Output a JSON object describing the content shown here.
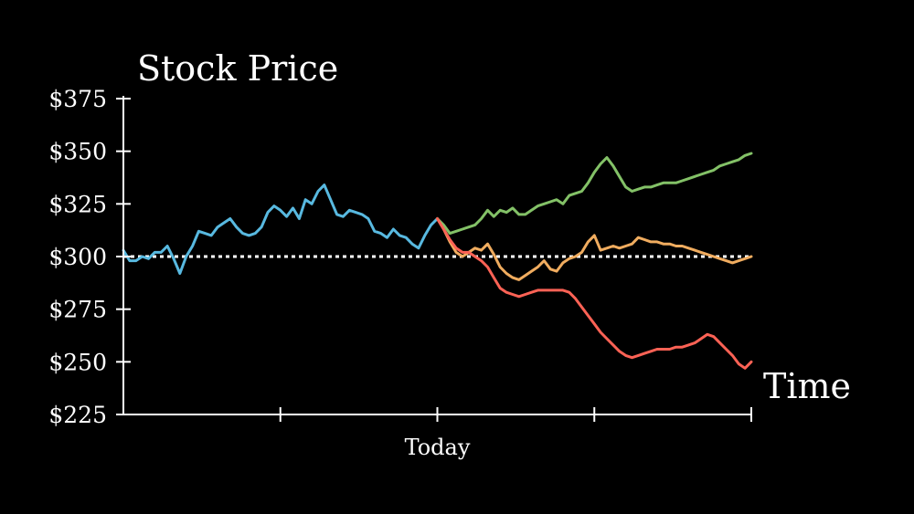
{
  "chart_data": {
    "type": "line",
    "ylabel": "Stock Price",
    "xlabel": "Time",
    "ylim": [
      225,
      375
    ],
    "yticks": [
      375,
      350,
      325,
      300,
      275,
      250,
      225
    ],
    "ytick_labels": [
      "$375",
      "$350",
      "$325",
      "$300",
      "$275",
      "$250",
      "$225"
    ],
    "xlim": [
      -1,
      1
    ],
    "xticks": [
      -1,
      -0.5,
      0,
      0.5,
      1
    ],
    "xtick_labels": [
      "",
      "",
      "Today",
      "",
      ""
    ],
    "reference_line": {
      "y": 300,
      "style": "dotted",
      "color": "#ffffff"
    },
    "series": [
      {
        "color": "#58b9e0",
        "x": [
          -1,
          -0.98,
          -0.96,
          -0.94,
          -0.92,
          -0.9,
          -0.88,
          -0.86,
          -0.84,
          -0.82,
          -0.8,
          -0.78,
          -0.76,
          -0.74,
          -0.72,
          -0.7,
          -0.68,
          -0.66,
          -0.64,
          -0.62,
          -0.6,
          -0.58,
          -0.56,
          -0.54,
          -0.52,
          -0.5,
          -0.48,
          -0.46,
          -0.44,
          -0.42,
          -0.4,
          -0.38,
          -0.36,
          -0.34,
          -0.32,
          -0.3,
          -0.28,
          -0.26,
          -0.24,
          -0.22,
          -0.2,
          -0.18,
          -0.16,
          -0.14,
          -0.12,
          -0.1,
          -0.08,
          -0.06,
          -0.04,
          -0.02,
          0
        ],
        "y": [
          303,
          298,
          298,
          300,
          299,
          302,
          302,
          305,
          299,
          292,
          300,
          305,
          312,
          311,
          310,
          314,
          316,
          318,
          314,
          311,
          310,
          311,
          314,
          321,
          324,
          322,
          319,
          323,
          318,
          327,
          325,
          331,
          334,
          327,
          320,
          319,
          322,
          321,
          320,
          318,
          312,
          311,
          309,
          313,
          310,
          309,
          306,
          304,
          310,
          315,
          318
        ]
      },
      {
        "color": "#83c167",
        "x": [
          0,
          0.02,
          0.04,
          0.06,
          0.08,
          0.1,
          0.12,
          0.14,
          0.16,
          0.18,
          0.2,
          0.22,
          0.24,
          0.26,
          0.28,
          0.3,
          0.32,
          0.34,
          0.36,
          0.38,
          0.4,
          0.42,
          0.44,
          0.46,
          0.48,
          0.5,
          0.52,
          0.54,
          0.56,
          0.58,
          0.6,
          0.62,
          0.64,
          0.66,
          0.68,
          0.7,
          0.72,
          0.74,
          0.76,
          0.78,
          0.8,
          0.82,
          0.84,
          0.86,
          0.88,
          0.9,
          0.92,
          0.94,
          0.96,
          0.98,
          1
        ],
        "y": [
          318,
          315,
          311,
          312,
          313,
          314,
          315,
          318,
          322,
          319,
          322,
          321,
          323,
          320,
          320,
          322,
          324,
          325,
          326,
          327,
          325,
          329,
          330,
          331,
          335,
          340,
          344,
          347,
          343,
          338,
          333,
          331,
          332,
          333,
          333,
          334,
          335,
          335,
          335,
          336,
          337,
          338,
          339,
          340,
          341,
          343,
          344,
          345,
          346,
          348,
          349
        ]
      },
      {
        "color": "#f0ac5f",
        "x": [
          0,
          0.02,
          0.04,
          0.06,
          0.08,
          0.1,
          0.12,
          0.14,
          0.16,
          0.18,
          0.2,
          0.22,
          0.24,
          0.26,
          0.28,
          0.3,
          0.32,
          0.34,
          0.36,
          0.38,
          0.4,
          0.42,
          0.44,
          0.46,
          0.48,
          0.5,
          0.52,
          0.54,
          0.56,
          0.58,
          0.6,
          0.62,
          0.64,
          0.66,
          0.68,
          0.7,
          0.72,
          0.74,
          0.76,
          0.78,
          0.8,
          0.82,
          0.84,
          0.86,
          0.88,
          0.9,
          0.92,
          0.94,
          0.96,
          0.98,
          1
        ],
        "y": [
          318,
          313,
          307,
          302,
          300,
          302,
          304,
          303,
          306,
          301,
          295,
          292,
          290,
          289,
          291,
          293,
          295,
          298,
          294,
          293,
          297,
          299,
          300,
          302,
          307,
          310,
          303,
          304,
          305,
          304,
          305,
          306,
          309,
          308,
          307,
          307,
          306,
          306,
          305,
          305,
          304,
          303,
          302,
          301,
          300,
          299,
          298,
          297,
          298,
          299,
          300
        ]
      },
      {
        "color": "#fc6255",
        "x": [
          0,
          0.02,
          0.04,
          0.06,
          0.08,
          0.1,
          0.12,
          0.14,
          0.16,
          0.18,
          0.2,
          0.22,
          0.24,
          0.26,
          0.28,
          0.3,
          0.32,
          0.34,
          0.36,
          0.38,
          0.4,
          0.42,
          0.44,
          0.46,
          0.48,
          0.5,
          0.52,
          0.54,
          0.56,
          0.58,
          0.6,
          0.62,
          0.64,
          0.66,
          0.68,
          0.7,
          0.72,
          0.74,
          0.76,
          0.78,
          0.8,
          0.82,
          0.84,
          0.86,
          0.88,
          0.9,
          0.92,
          0.94,
          0.96,
          0.98,
          1
        ],
        "y": [
          318,
          313,
          308,
          304,
          302,
          302,
          300,
          298,
          295,
          290,
          285,
          283,
          282,
          281,
          282,
          283,
          284,
          284,
          284,
          284,
          284,
          283,
          280,
          276,
          272,
          268,
          264,
          261,
          258,
          255,
          253,
          252,
          253,
          254,
          255,
          256,
          256,
          256,
          257,
          257,
          258,
          259,
          261,
          263,
          262,
          259,
          256,
          253,
          249,
          247,
          250
        ]
      }
    ]
  }
}
